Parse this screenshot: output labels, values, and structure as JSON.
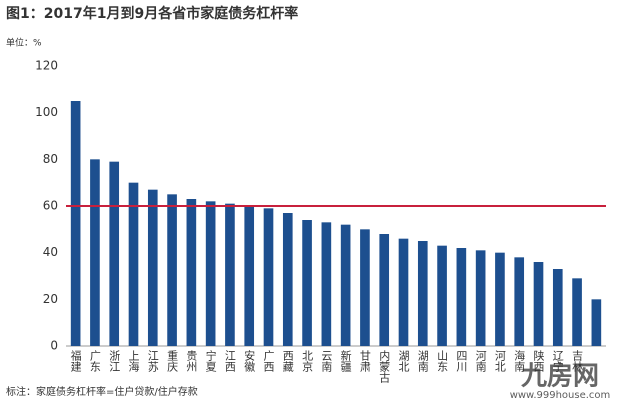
{
  "chart_data": {
    "type": "bar",
    "title": "图1：2017年1月到9月各省市家庭债务杠杆率",
    "unit_label": "单位：%",
    "footnote": "标注：家庭债务杠杆率=住户贷款/住户存款",
    "watermark": [
      "九房网",
      "www.999house.com"
    ],
    "categories": [
      "福建",
      "广东",
      "浙江",
      "上海",
      "江苏",
      "重庆",
      "贵州",
      "宁夏",
      "江西",
      "安徽",
      "广西",
      "西藏",
      "北京",
      "云南",
      "新疆",
      "甘肃",
      "内蒙古",
      "湖北",
      "湖南",
      "山东",
      "四川",
      "河南",
      "河北",
      "海南",
      "陕西",
      "辽宁",
      "吉林",
      null
    ],
    "values": [
      105,
      80,
      79,
      70,
      67,
      65,
      63,
      62,
      61,
      60,
      59,
      57,
      54,
      53,
      52,
      50,
      48,
      46,
      45,
      43,
      42,
      41,
      40,
      38,
      36,
      33,
      29,
      20
    ],
    "color": "#1d4f8f",
    "ylim": [
      0,
      120
    ],
    "yticks": [
      0,
      20,
      40,
      60,
      80,
      100,
      120
    ],
    "grid": false,
    "reference_line": {
      "value": 60,
      "color": "#c8203c"
    }
  }
}
